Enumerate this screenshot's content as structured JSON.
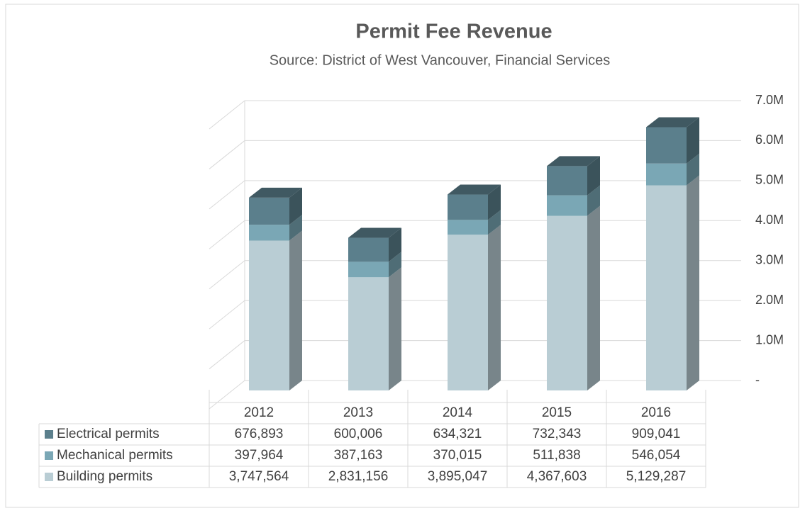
{
  "chart_data": {
    "type": "bar3d_stacked",
    "title": "Permit Fee Revenue",
    "subtitle": "Source: District of West Vancouver, Financial Services",
    "categories": [
      "2012",
      "2013",
      "2014",
      "2015",
      "2016"
    ],
    "series": [
      {
        "name": "Building permits",
        "color": "#b9cdd4",
        "values": [
          3747564,
          2831156,
          3895047,
          4367603,
          5129287
        ],
        "value_labels": [
          "3,747,564",
          "2,831,156",
          "3,895,047",
          "4,367,603",
          "5,129,287"
        ]
      },
      {
        "name": "Mechanical permits",
        "color": "#7aa7b5",
        "values": [
          397964,
          387163,
          370015,
          511838,
          546054
        ],
        "value_labels": [
          "397,964",
          "387,163",
          "370,015",
          "511,838",
          "546,054"
        ]
      },
      {
        "name": "Electrical permits",
        "color": "#5b7f8c",
        "values": [
          676893,
          600006,
          634321,
          732343,
          909041
        ],
        "value_labels": [
          "676,893",
          "600,006",
          "634,321",
          "732,343",
          "909,041"
        ]
      }
    ],
    "ylim": [
      0,
      7000000
    ],
    "yticks": [
      {
        "value": 0,
        "label": "-"
      },
      {
        "value": 1000000,
        "label": "1.0M"
      },
      {
        "value": 2000000,
        "label": "2.0M"
      },
      {
        "value": 3000000,
        "label": "3.0M"
      },
      {
        "value": 4000000,
        "label": "4.0M"
      },
      {
        "value": 5000000,
        "label": "5.0M"
      },
      {
        "value": 6000000,
        "label": "6.0M"
      },
      {
        "value": 7000000,
        "label": "7.0M"
      }
    ],
    "grid": true
  }
}
